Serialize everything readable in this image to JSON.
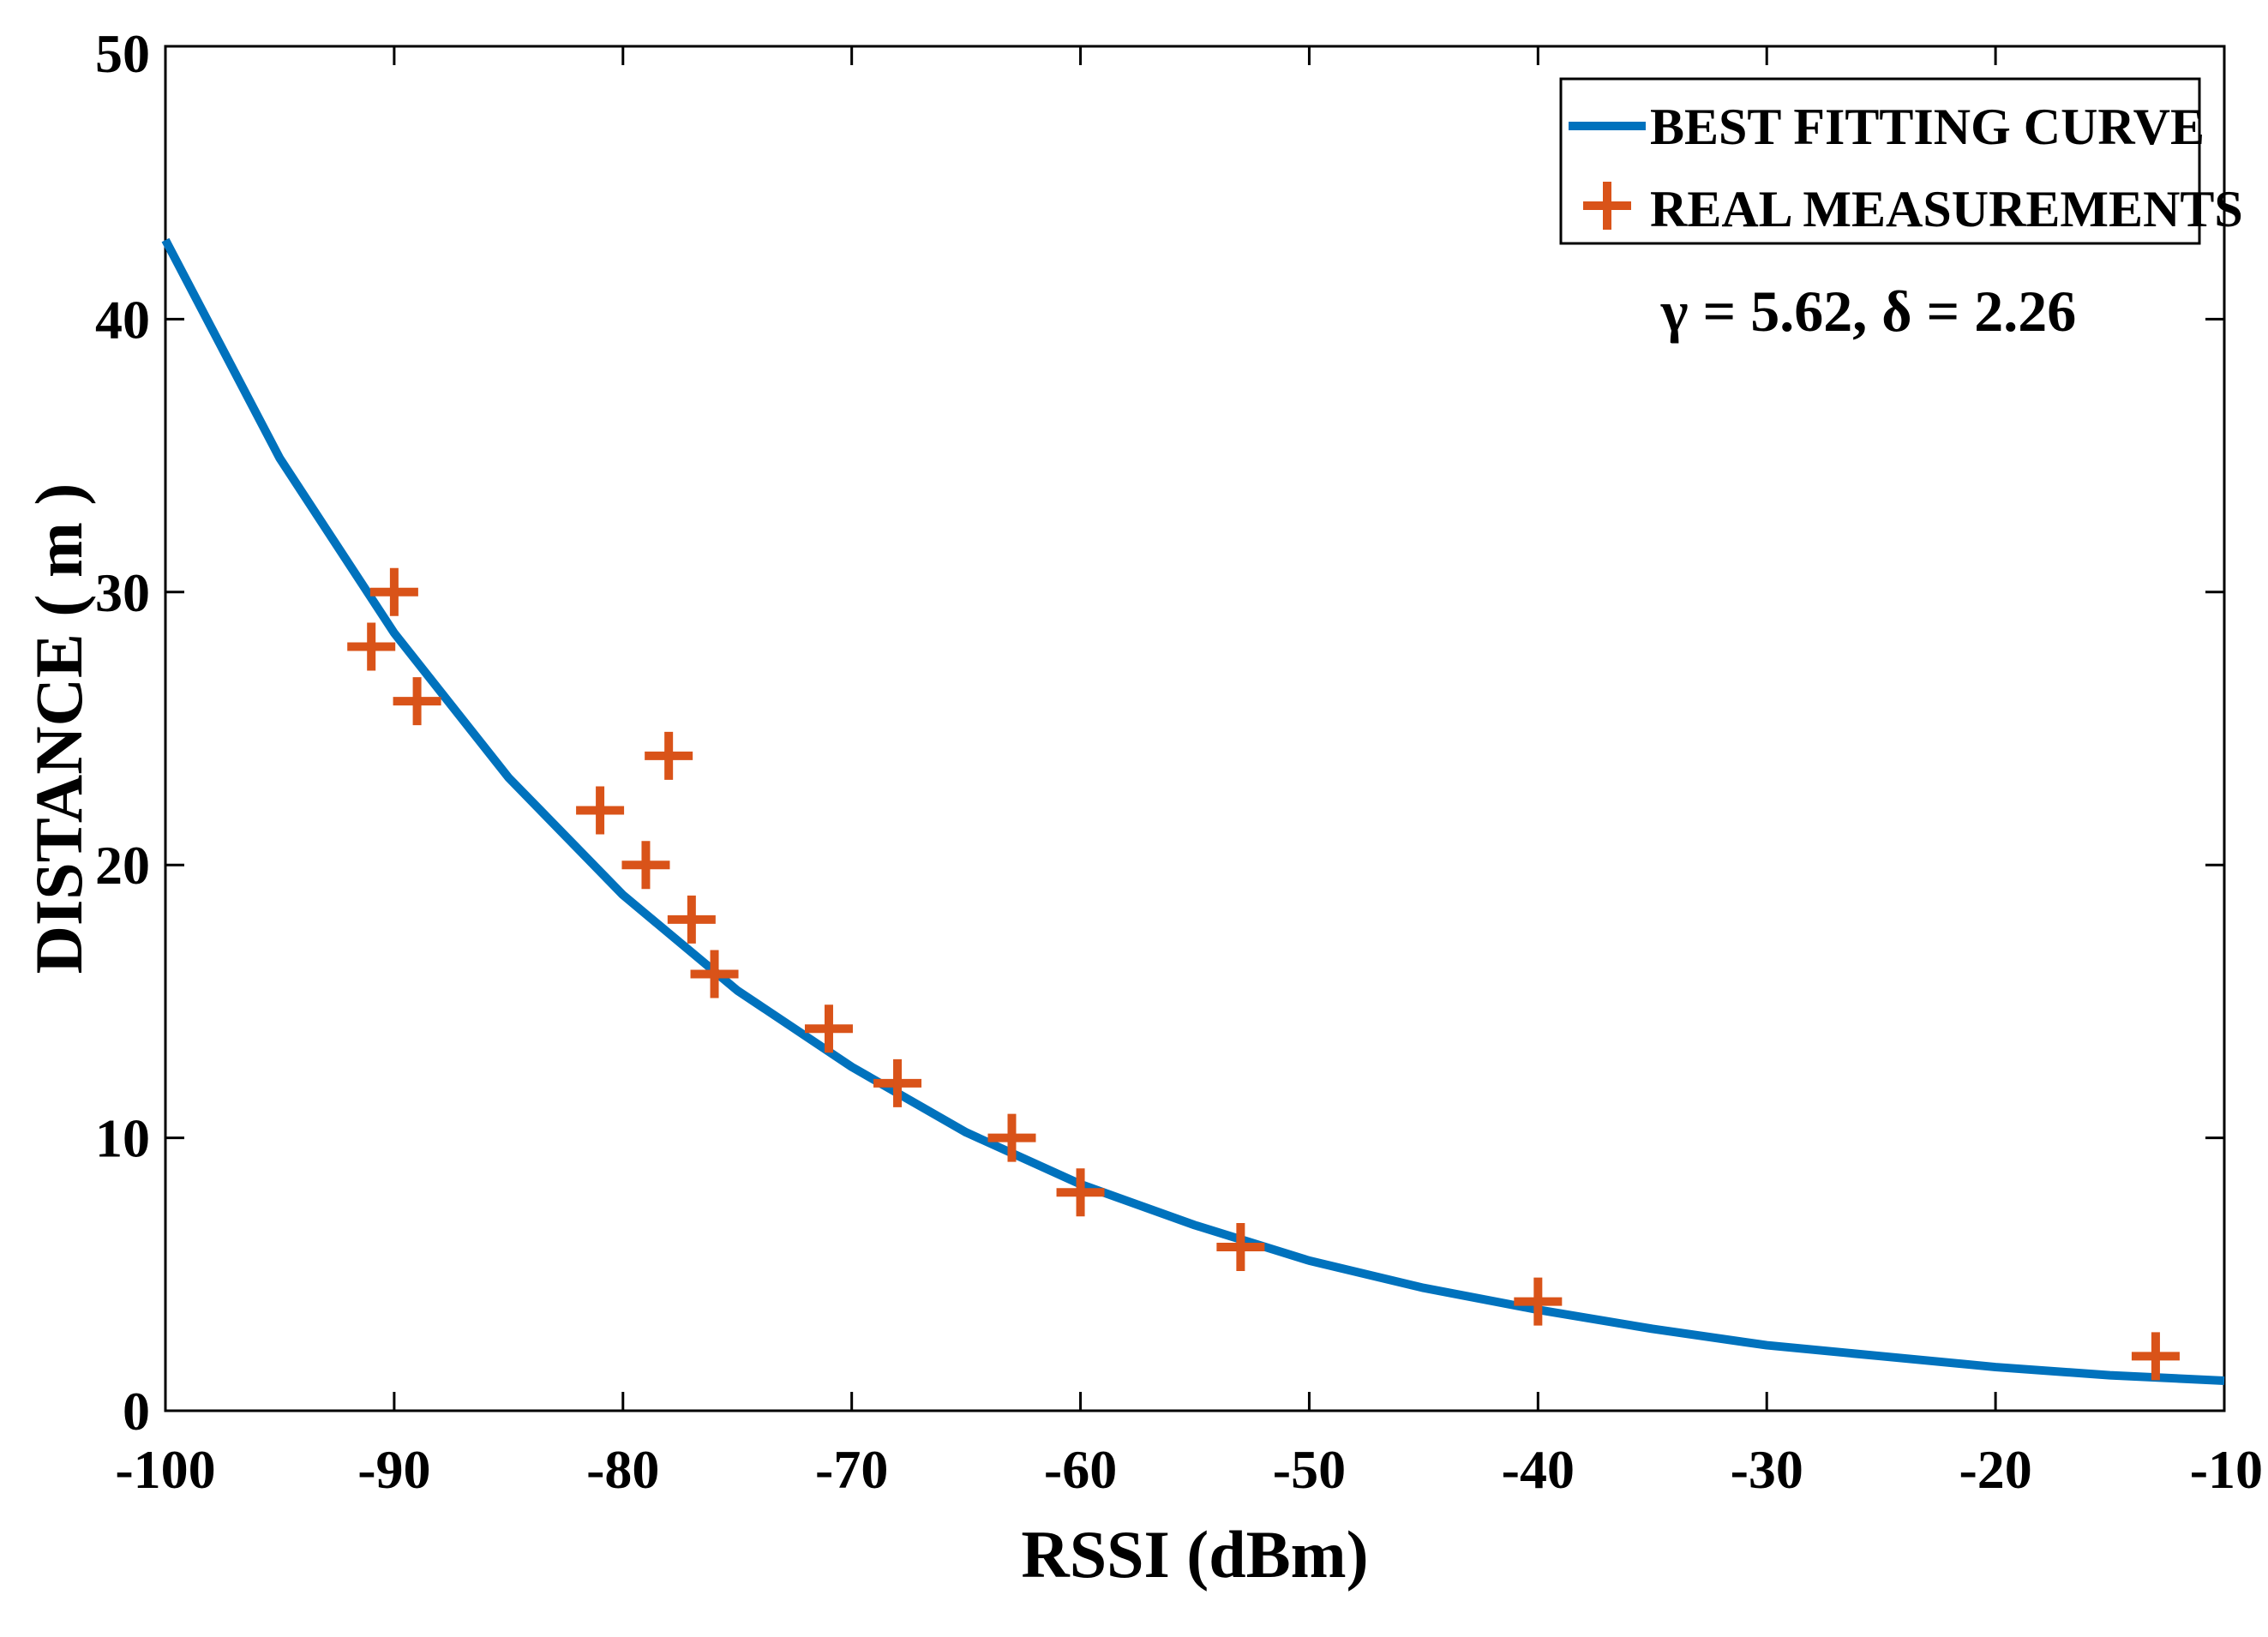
{
  "chart_data": {
    "type": "line",
    "title": "",
    "xlabel": "RSSI (dBm)",
    "ylabel": "DISTANCE ( m )",
    "xlim": [
      -100,
      -10
    ],
    "ylim": [
      0,
      50
    ],
    "xticks": [
      -100,
      -90,
      -80,
      -70,
      -60,
      -50,
      -40,
      -30,
      -20,
      -10
    ],
    "yticks": [
      0,
      10,
      20,
      30,
      40,
      50
    ],
    "grid": false,
    "legend_position": "top-right",
    "annotation": "γ = 5.62, δ = 2.26",
    "series": [
      {
        "name": "BEST FITTING CURVE",
        "kind": "line",
        "color": "#0072BD",
        "x": [
          -100,
          -95,
          -90,
          -85,
          -80,
          -75,
          -70,
          -65,
          -60,
          -55,
          -50,
          -45,
          -40,
          -35,
          -30,
          -25,
          -20,
          -15,
          -10
        ],
        "y": [
          42.9,
          34.9,
          28.5,
          23.2,
          18.9,
          15.4,
          12.6,
          10.2,
          8.3,
          6.8,
          5.5,
          4.5,
          3.7,
          3.0,
          2.4,
          2.0,
          1.6,
          1.3,
          1.1
        ]
      },
      {
        "name": "REAL MEASUREMENTS",
        "kind": "scatter",
        "marker": "+",
        "color": "#D95319",
        "x": [
          -91,
          -90,
          -89,
          -81,
          -79,
          -78,
          -77,
          -76,
          -71,
          -68,
          -63,
          -60,
          -53,
          -40,
          -13
        ],
        "y": [
          28,
          30,
          26,
          22,
          20,
          24,
          18,
          16,
          14,
          12,
          10,
          8,
          6,
          4,
          2
        ]
      }
    ]
  }
}
